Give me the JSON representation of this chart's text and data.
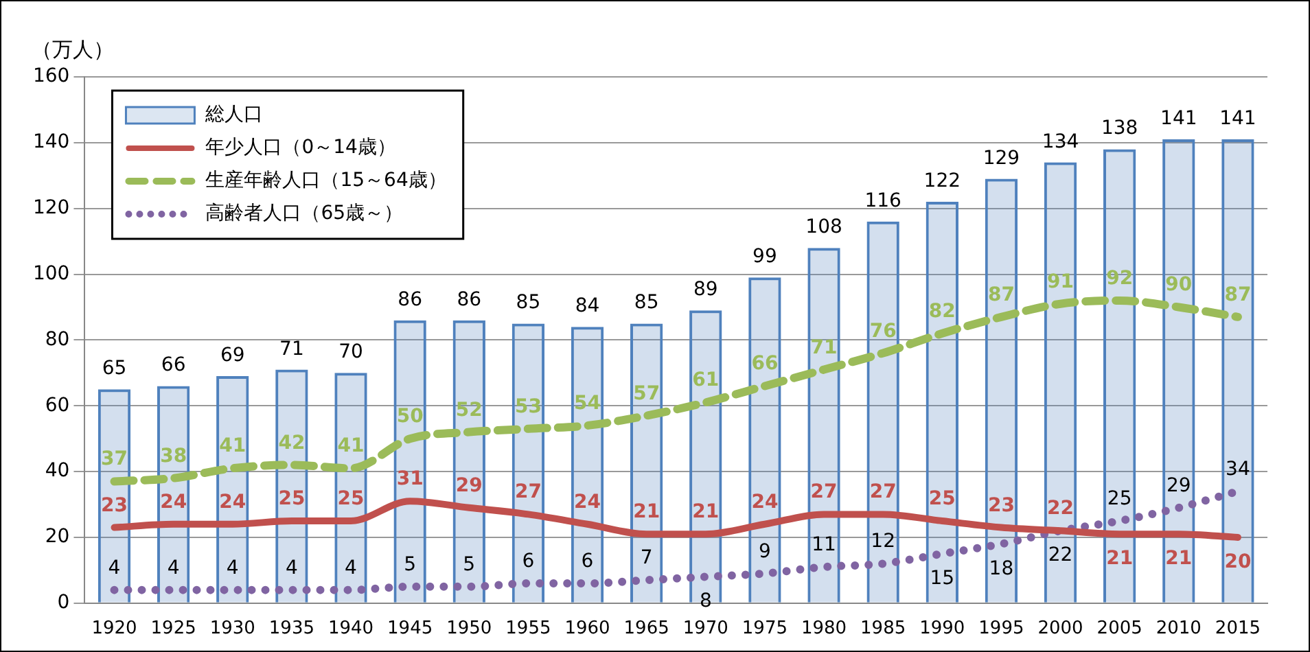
{
  "chart_data": {
    "type": "bar",
    "ylabel": "（万人）",
    "categories": [
      "1920",
      "1925",
      "1930",
      "1935",
      "1940",
      "1945",
      "1950",
      "1955",
      "1960",
      "1965",
      "1970",
      "1975",
      "1980",
      "1985",
      "1990",
      "1995",
      "2000",
      "2005",
      "2010",
      "2015"
    ],
    "series": [
      {
        "name": "総人口",
        "color": "#4f81bd",
        "values": [
          65,
          66,
          69,
          71,
          70,
          86,
          86,
          85,
          84,
          85,
          89,
          99,
          108,
          116,
          122,
          129,
          134,
          138,
          141,
          141
        ]
      },
      {
        "name": "年少人口（0～14歳）",
        "type": "line",
        "line_style": "solid",
        "color": "#c0504d",
        "values": [
          23,
          24,
          24,
          25,
          25,
          31,
          29,
          27,
          24,
          21,
          21,
          24,
          27,
          27,
          25,
          23,
          22,
          21,
          21,
          20
        ]
      },
      {
        "name": "生産年齢人口（15～64歳）",
        "type": "line",
        "line_style": "dashed",
        "color": "#9bbb59",
        "values": [
          37,
          38,
          41,
          42,
          41,
          50,
          52,
          53,
          54,
          57,
          61,
          66,
          71,
          76,
          82,
          87,
          91,
          92,
          90,
          87
        ]
      },
      {
        "name": "高齢者人口（65歳～）",
        "type": "line",
        "line_style": "dotted",
        "color": "#8064a2",
        "values": [
          4,
          4,
          4,
          4,
          4,
          5,
          5,
          6,
          6,
          7,
          8,
          9,
          11,
          12,
          15,
          18,
          22,
          25,
          29,
          34
        ]
      }
    ],
    "ylim": [
      0,
      160
    ],
    "yticks": [
      0,
      20,
      40,
      60,
      80,
      100,
      120,
      140,
      160
    ],
    "grid": "y",
    "legend": "top left",
    "marker": "none",
    "data_labels": true
  }
}
